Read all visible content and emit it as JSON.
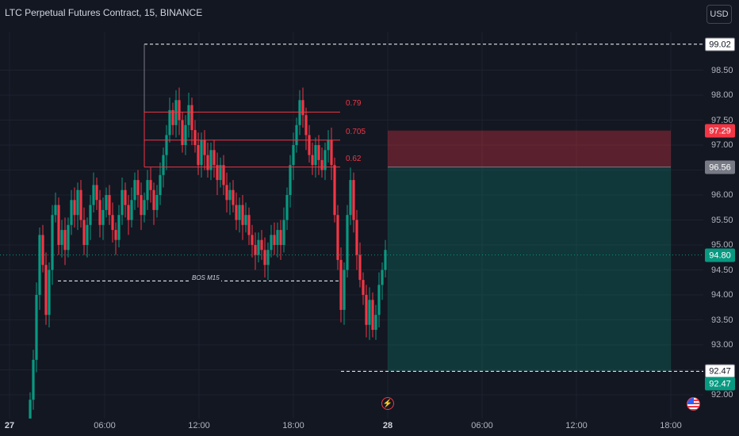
{
  "title": "LTC Perpetual Futures Contract, 15, BINANCE",
  "currency": "USD",
  "price_axis": {
    "ticks": [
      "99.02",
      "98.50",
      "98.00",
      "97.50",
      "97.00",
      "96.50",
      "96.00",
      "95.50",
      "95.00",
      "94.50",
      "94.00",
      "93.50",
      "93.00",
      "92.50",
      "92.00"
    ],
    "tags": [
      {
        "label": "99.02",
        "bg": "#ffffff",
        "fg": "#131722",
        "border": "#787b86"
      },
      {
        "label": "97.29",
        "bg": "#f23645",
        "fg": "#ffffff",
        "border": "#f23645"
      },
      {
        "label": "96.56",
        "bg": "#787b86",
        "fg": "#ffffff",
        "border": "#787b86"
      },
      {
        "label": "94.80",
        "bg": "#089981",
        "fg": "#ffffff",
        "border": "#089981"
      },
      {
        "label": "92.47",
        "bg": "#ffffff",
        "fg": "#131722",
        "border": "#787b86"
      },
      {
        "label": "92.47",
        "bg": "#089981",
        "fg": "#ffffff",
        "border": "#089981"
      }
    ]
  },
  "time_axis": [
    "27",
    "06:00",
    "12:00",
    "18:00",
    "28",
    "06:00",
    "12:00",
    "18:00"
  ],
  "fib_levels": [
    "0.79",
    "0.705",
    "0.62"
  ],
  "bos_label": "BOS M15",
  "colors": {
    "up": "#089981",
    "down": "#f23645",
    "background": "#131722",
    "grid": "#1e222d"
  },
  "icons": {
    "alert": "lightning-alert-icon",
    "flag": "us-flag-icon"
  }
}
